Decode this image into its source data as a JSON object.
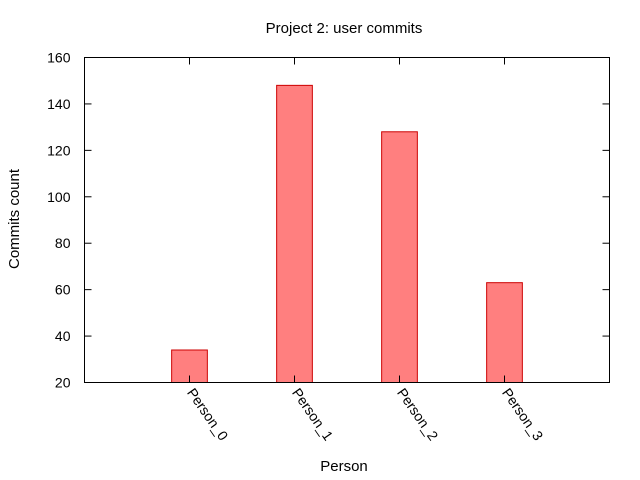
{
  "chart_data": {
    "type": "bar",
    "title": "Project 2: user commits",
    "xlabel": "Person",
    "ylabel": "Commits count",
    "categories": [
      "Person_0",
      "Person_1",
      "Person_2",
      "Person_3"
    ],
    "values": [
      34,
      148,
      128,
      63
    ],
    "ylim": [
      20,
      160
    ],
    "yticks": [
      20,
      40,
      60,
      80,
      100,
      120,
      140,
      160
    ],
    "grid": false,
    "legend": "none",
    "colors": {
      "bar_fill": "#ff7f7f",
      "bar_stroke": "#cc0000",
      "axis": "#000000"
    }
  }
}
